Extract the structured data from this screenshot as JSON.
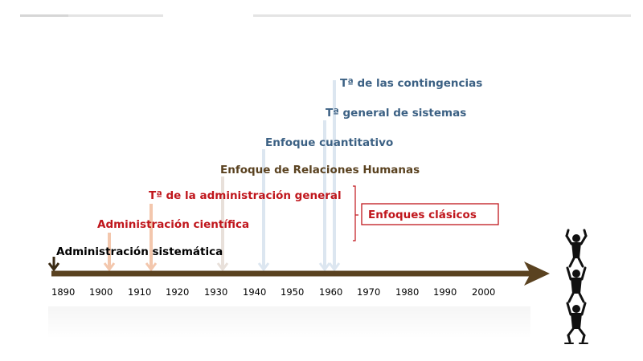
{
  "timeline": {
    "years": [
      "1890",
      "1900",
      "1910",
      "1920",
      "1930",
      "1940",
      "1950",
      "1960",
      "1970",
      "1980",
      "1990",
      "2000"
    ]
  },
  "events": [
    {
      "key": "sistematica",
      "label": "Administración sistemática",
      "year": 1890,
      "color": "#000000"
    },
    {
      "key": "cientifica",
      "label": "Administración científica",
      "year": 1902,
      "color": "#c0161c"
    },
    {
      "key": "general",
      "label": "Tª de la administración general",
      "year": 1913,
      "color": "#c0161c"
    },
    {
      "key": "relaciones",
      "label": "Enfoque de Relaciones Humanas",
      "year": 1931,
      "color": "#5a4220"
    },
    {
      "key": "cuantitativo",
      "label": "Enfoque cuantitativo",
      "year": 1943,
      "color": "#3c6184"
    },
    {
      "key": "sistemas",
      "label": "Tª general de sistemas",
      "year": 1959,
      "color": "#3c6184"
    },
    {
      "key": "contingencias",
      "label": "Tª de las contingencias",
      "year": 1961,
      "color": "#3c6184"
    }
  ],
  "group": {
    "label": "Enfoques clásicos",
    "color": "#c0161c"
  },
  "colors": {
    "axis": "#5a4220",
    "red": "#c0161c",
    "blue": "#3c6184",
    "brown": "#5a4220"
  }
}
